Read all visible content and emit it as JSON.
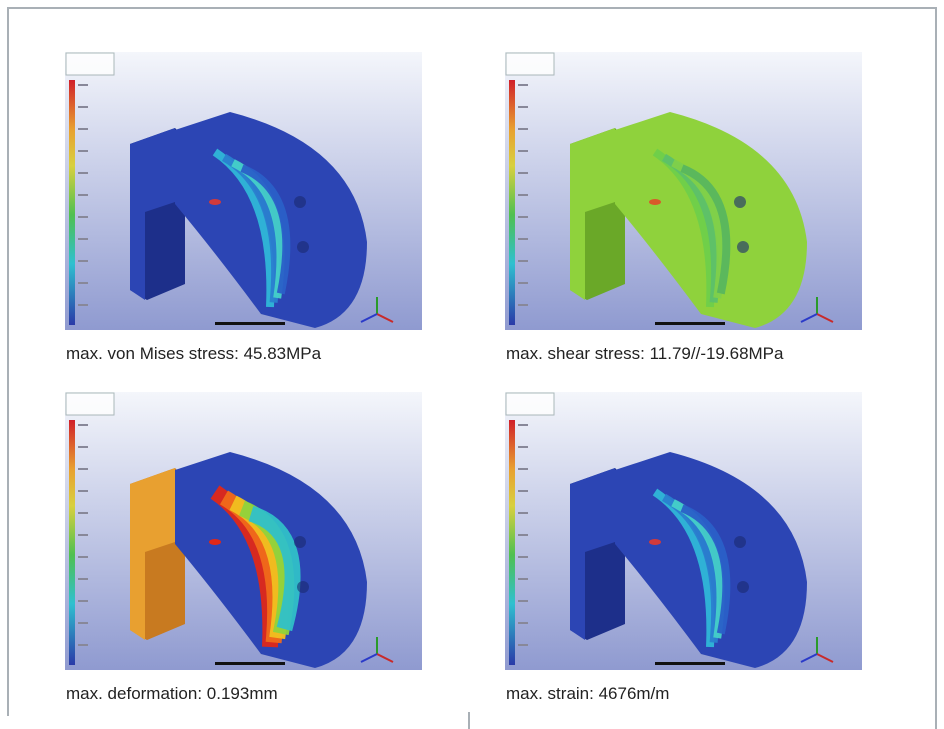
{
  "panels": [
    {
      "caption": "max. von Mises stress: 45.83MPa"
    },
    {
      "caption": "max. shear stress: 11.79//-19.68MPa"
    },
    {
      "caption": "max. deformation: 0.193mm"
    },
    {
      "caption": "max. strain: 4676m/m"
    }
  ]
}
